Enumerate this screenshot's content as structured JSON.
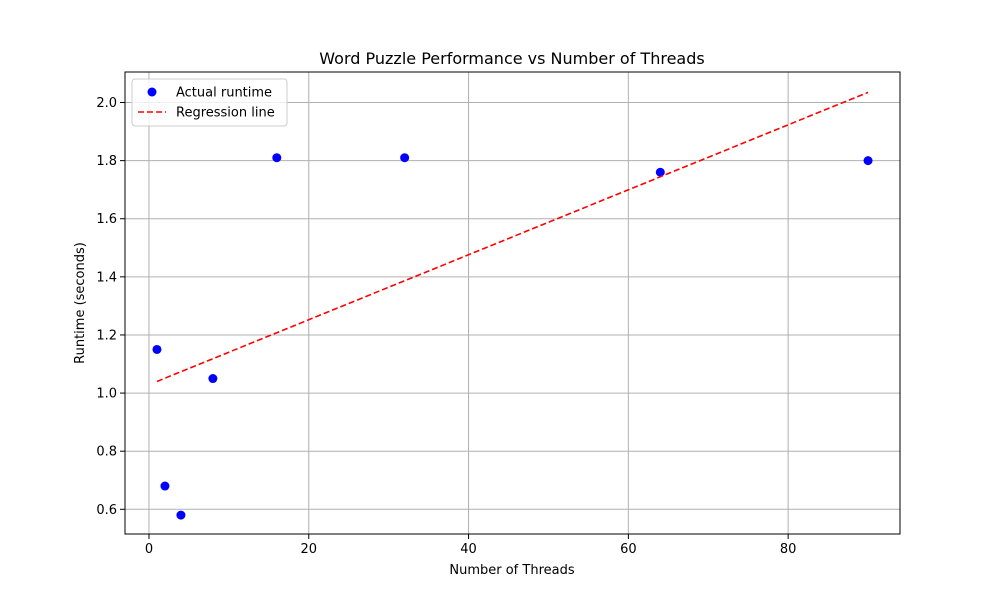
{
  "chart_data": {
    "type": "scatter",
    "title": "Word Puzzle Performance vs Number of Threads",
    "xlabel": "Number of Threads",
    "ylabel": "Runtime (seconds)",
    "xlim": [
      -3,
      94
    ],
    "ylim": [
      0.515,
      2.105
    ],
    "xticks": [
      0,
      20,
      40,
      60,
      80
    ],
    "xtick_labels": [
      "0",
      "20",
      "40",
      "60",
      "80"
    ],
    "yticks": [
      0.6,
      0.8,
      1.0,
      1.2,
      1.4,
      1.6,
      1.8,
      2.0
    ],
    "ytick_labels": [
      "0.6",
      "0.8",
      "1.0",
      "1.2",
      "1.4",
      "1.6",
      "1.8",
      "2.0"
    ],
    "grid": true,
    "legend_position": "top-left",
    "series": [
      {
        "name": "Actual runtime",
        "kind": "scatter",
        "color": "#0000ff",
        "x": [
          1,
          2,
          4,
          8,
          16,
          32,
          64,
          90
        ],
        "y": [
          1.15,
          0.68,
          0.58,
          1.05,
          1.81,
          1.81,
          1.76,
          1.8
        ]
      },
      {
        "name": "Regression line",
        "kind": "line",
        "style": "dashed",
        "color": "#ff0000",
        "x": [
          1,
          90
        ],
        "y": [
          1.04,
          2.035
        ]
      }
    ]
  }
}
